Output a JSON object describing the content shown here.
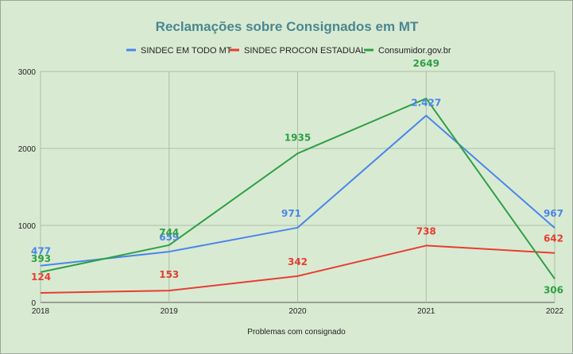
{
  "chart_data": {
    "type": "line",
    "title": "Reclamações sobre Consignados em MT",
    "xlabel": "Problemas com consignado",
    "ylabel": "",
    "categories": [
      "2018",
      "2019",
      "2020",
      "2021",
      "2022"
    ],
    "ylim": [
      0,
      3000
    ],
    "yticks": [
      0,
      1000,
      2000,
      3000
    ],
    "grid": true,
    "legend_position": "top",
    "series": [
      {
        "name": "SINDEC EM TODO MT",
        "color": "#4a86e8",
        "values": [
          477,
          659,
          971,
          2427,
          967
        ],
        "labels": [
          "477",
          "659",
          "971",
          "2.427",
          "967"
        ]
      },
      {
        "name": "SINDEC PROCON ESTADUAL",
        "color": "#e53e30",
        "values": [
          124,
          153,
          342,
          738,
          642
        ],
        "labels": [
          "124",
          "153",
          "342",
          "738",
          "642"
        ]
      },
      {
        "name": "Consumidor.gov.br",
        "color": "#2ea043",
        "values": [
          393,
          744,
          1935,
          2649,
          306
        ],
        "labels": [
          "393",
          "744",
          "1935",
          "2649",
          "306"
        ]
      }
    ]
  }
}
